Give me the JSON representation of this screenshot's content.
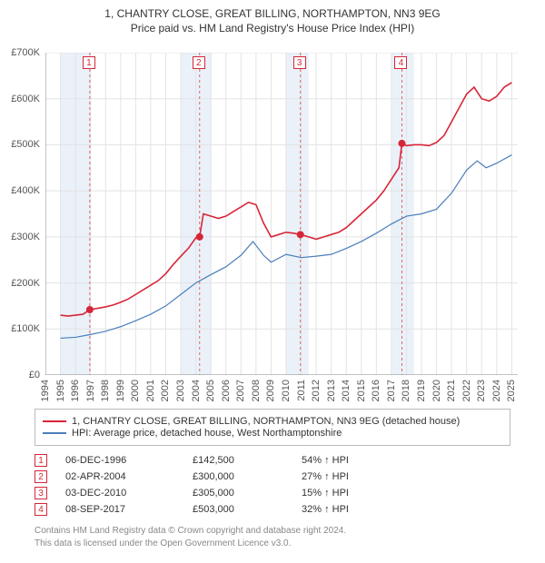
{
  "title": {
    "line1": "1, CHANTRY CLOSE, GREAT BILLING, NORTHAMPTON, NN3 9EG",
    "line2": "Price paid vs. HM Land Registry's House Price Index (HPI)"
  },
  "chart": {
    "type": "line",
    "background_color": "#ffffff",
    "grid_color": "#e3e3e3",
    "axis_color": "#888888",
    "xlim": [
      1994,
      2025.4
    ],
    "ylim": [
      0,
      700
    ],
    "x_ticks": [
      1994,
      1995,
      1996,
      1997,
      1998,
      1999,
      2000,
      2001,
      2002,
      2003,
      2004,
      2005,
      2006,
      2007,
      2008,
      2009,
      2010,
      2011,
      2012,
      2013,
      2014,
      2015,
      2016,
      2017,
      2018,
      2019,
      2020,
      2021,
      2022,
      2023,
      2024,
      2025
    ],
    "y_ticks": [
      0,
      100,
      200,
      300,
      400,
      500,
      600,
      700
    ],
    "y_tick_prefix": "£",
    "y_tick_suffix": "K",
    "band_color": "#eaf1f9",
    "bands": [
      [
        1995,
        1997
      ],
      [
        2003,
        2005
      ],
      [
        2010,
        2011.5
      ],
      [
        2017,
        2018.5
      ]
    ],
    "sale_line_color": "#e06666",
    "sale_line_dash": "3,3",
    "series": [
      {
        "name": "property",
        "color": "#d72638",
        "width": 1.6,
        "points": [
          [
            1995.0,
            130
          ],
          [
            1995.5,
            128
          ],
          [
            1996.0,
            130
          ],
          [
            1996.5,
            132
          ],
          [
            1996.95,
            142
          ],
          [
            1997.5,
            145
          ],
          [
            1998.0,
            148
          ],
          [
            1998.5,
            152
          ],
          [
            1999.0,
            158
          ],
          [
            1999.5,
            165
          ],
          [
            2000.0,
            175
          ],
          [
            2000.5,
            185
          ],
          [
            2001.0,
            195
          ],
          [
            2001.5,
            205
          ],
          [
            2002.0,
            220
          ],
          [
            2002.5,
            240
          ],
          [
            2003.0,
            258
          ],
          [
            2003.5,
            275
          ],
          [
            2004.0,
            298
          ],
          [
            2004.25,
            300
          ],
          [
            2004.5,
            350
          ],
          [
            2005.0,
            345
          ],
          [
            2005.5,
            340
          ],
          [
            2006.0,
            345
          ],
          [
            2006.5,
            355
          ],
          [
            2007.0,
            365
          ],
          [
            2007.5,
            375
          ],
          [
            2008.0,
            370
          ],
          [
            2008.5,
            330
          ],
          [
            2009.0,
            300
          ],
          [
            2009.5,
            305
          ],
          [
            2010.0,
            310
          ],
          [
            2010.5,
            308
          ],
          [
            2010.95,
            305
          ],
          [
            2011.5,
            300
          ],
          [
            2012.0,
            295
          ],
          [
            2012.5,
            300
          ],
          [
            2013.0,
            305
          ],
          [
            2013.5,
            310
          ],
          [
            2014.0,
            320
          ],
          [
            2014.5,
            335
          ],
          [
            2015.0,
            350
          ],
          [
            2015.5,
            365
          ],
          [
            2016.0,
            380
          ],
          [
            2016.5,
            400
          ],
          [
            2017.0,
            425
          ],
          [
            2017.5,
            450
          ],
          [
            2017.7,
            503
          ],
          [
            2018.0,
            498
          ],
          [
            2018.5,
            500
          ],
          [
            2019.0,
            500
          ],
          [
            2019.5,
            498
          ],
          [
            2020.0,
            505
          ],
          [
            2020.5,
            520
          ],
          [
            2021.0,
            550
          ],
          [
            2021.5,
            580
          ],
          [
            2022.0,
            610
          ],
          [
            2022.5,
            625
          ],
          [
            2023.0,
            600
          ],
          [
            2023.5,
            595
          ],
          [
            2024.0,
            605
          ],
          [
            2024.5,
            625
          ],
          [
            2025.0,
            635
          ]
        ]
      },
      {
        "name": "hpi",
        "color": "#4a7ebb",
        "width": 1.2,
        "points": [
          [
            1995.0,
            80
          ],
          [
            1996.0,
            82
          ],
          [
            1997.0,
            88
          ],
          [
            1998.0,
            95
          ],
          [
            1999.0,
            105
          ],
          [
            2000.0,
            118
          ],
          [
            2001.0,
            132
          ],
          [
            2002.0,
            150
          ],
          [
            2003.0,
            175
          ],
          [
            2004.0,
            200
          ],
          [
            2005.0,
            218
          ],
          [
            2006.0,
            235
          ],
          [
            2007.0,
            260
          ],
          [
            2007.8,
            290
          ],
          [
            2008.5,
            260
          ],
          [
            2009.0,
            245
          ],
          [
            2010.0,
            262
          ],
          [
            2011.0,
            255
          ],
          [
            2012.0,
            258
          ],
          [
            2013.0,
            262
          ],
          [
            2014.0,
            275
          ],
          [
            2015.0,
            290
          ],
          [
            2016.0,
            308
          ],
          [
            2017.0,
            328
          ],
          [
            2018.0,
            345
          ],
          [
            2019.0,
            350
          ],
          [
            2020.0,
            360
          ],
          [
            2021.0,
            395
          ],
          [
            2022.0,
            445
          ],
          [
            2022.7,
            465
          ],
          [
            2023.3,
            450
          ],
          [
            2024.0,
            460
          ],
          [
            2025.0,
            478
          ]
        ]
      }
    ],
    "sale_markers": [
      {
        "n": "1",
        "x": 1996.95,
        "y": 142,
        "color": "#d72638"
      },
      {
        "n": "2",
        "x": 2004.25,
        "y": 300,
        "color": "#d72638"
      },
      {
        "n": "3",
        "x": 2010.95,
        "y": 305,
        "color": "#d72638"
      },
      {
        "n": "4",
        "x": 2017.7,
        "y": 503,
        "color": "#d72638"
      }
    ],
    "marker_radius": 4
  },
  "legend": {
    "items": [
      {
        "color": "#d72638",
        "label": "1, CHANTRY CLOSE, GREAT BILLING, NORTHAMPTON, NN3 9EG (detached house)"
      },
      {
        "color": "#4a7ebb",
        "label": "HPI: Average price, detached house, West Northamptonshire"
      }
    ]
  },
  "sales_table": {
    "arrow": "↑",
    "suffix": "HPI",
    "rows": [
      {
        "n": "1",
        "color": "#d72638",
        "date": "06-DEC-1996",
        "price": "£142,500",
        "pct": "54%"
      },
      {
        "n": "2",
        "color": "#d72638",
        "date": "02-APR-2004",
        "price": "£300,000",
        "pct": "27%"
      },
      {
        "n": "3",
        "color": "#d72638",
        "date": "03-DEC-2010",
        "price": "£305,000",
        "pct": "15%"
      },
      {
        "n": "4",
        "color": "#d72638",
        "date": "08-SEP-2017",
        "price": "£503,000",
        "pct": "32%"
      }
    ]
  },
  "footer": {
    "line1": "Contains HM Land Registry data © Crown copyright and database right 2024.",
    "line2": "This data is licensed under the Open Government Licence v3.0."
  }
}
